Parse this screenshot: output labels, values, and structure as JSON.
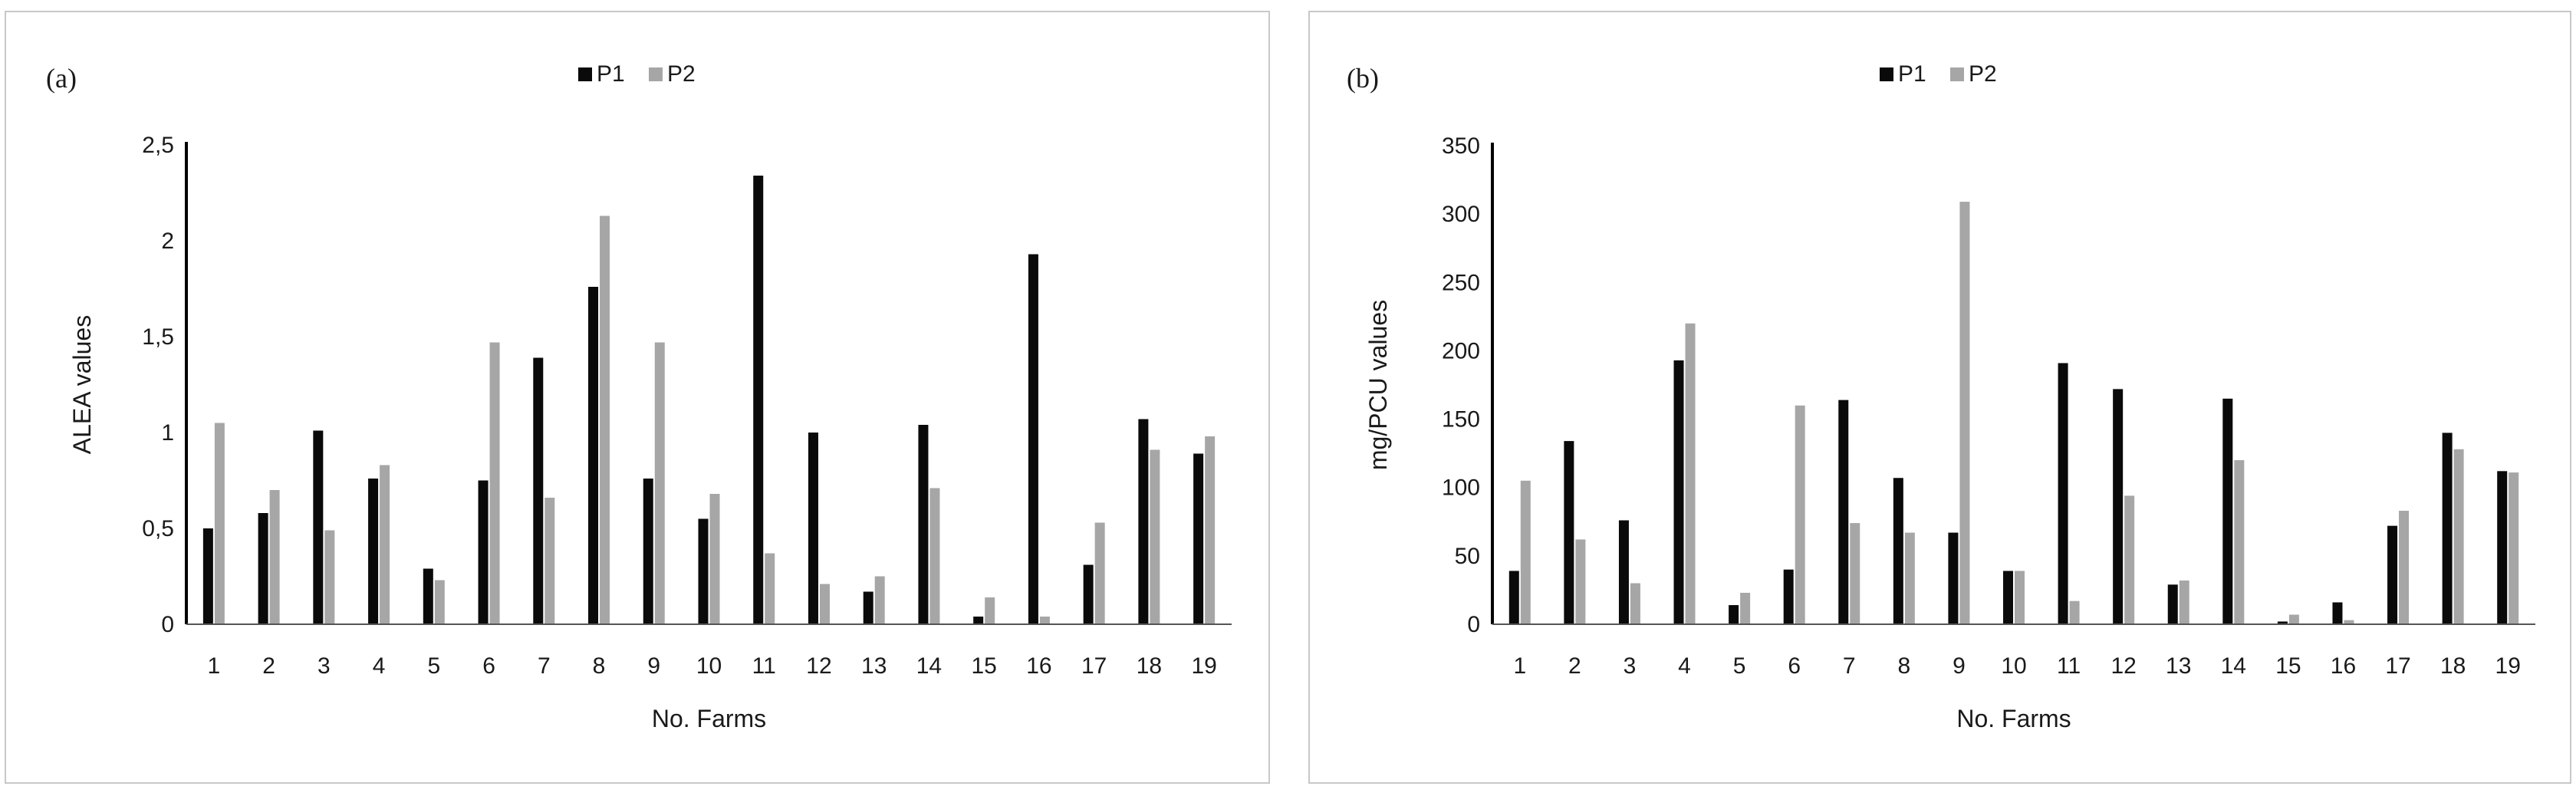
{
  "colors": {
    "P1": "#0a0a0a",
    "P2": "#a6a6a6",
    "axis": "#000000",
    "border": "#c8c8c8"
  },
  "chart_data": [
    {
      "type": "bar",
      "panel_label": "(a)",
      "xlabel": "No. Farms",
      "ylabel": "ALEA values",
      "ylim": [
        0,
        2.5
      ],
      "yticks": [
        "0",
        "0,5",
        "1",
        "1,5",
        "2",
        "2,5"
      ],
      "ytick_values": [
        0,
        0.5,
        1,
        1.5,
        2,
        2.5
      ],
      "legend_position": "top-center",
      "grid": false,
      "categories": [
        "1",
        "2",
        "3",
        "4",
        "5",
        "6",
        "7",
        "8",
        "9",
        "10",
        "11",
        "12",
        "13",
        "14",
        "15",
        "16",
        "17",
        "18",
        "19"
      ],
      "series": [
        {
          "name": "P1",
          "values": [
            0.5,
            0.58,
            1.01,
            0.76,
            0.29,
            0.75,
            1.39,
            1.76,
            0.76,
            0.55,
            2.34,
            1.0,
            0.17,
            1.04,
            0.04,
            1.93,
            0.31,
            1.07,
            0.89
          ]
        },
        {
          "name": "P2",
          "values": [
            1.05,
            0.7,
            0.49,
            0.83,
            0.23,
            1.47,
            0.66,
            2.13,
            1.47,
            0.68,
            0.37,
            0.21,
            0.25,
            0.71,
            0.14,
            0.04,
            0.53,
            0.91,
            0.98
          ]
        }
      ]
    },
    {
      "type": "bar",
      "panel_label": "(b)",
      "xlabel": "No. Farms",
      "ylabel": "mg/PCU values",
      "ylim": [
        0,
        350
      ],
      "yticks": [
        "0",
        "50",
        "100",
        "150",
        "200",
        "250",
        "300",
        "350"
      ],
      "ytick_values": [
        0,
        50,
        100,
        150,
        200,
        250,
        300,
        350
      ],
      "legend_position": "top-center",
      "grid": false,
      "categories": [
        "1",
        "2",
        "3",
        "4",
        "5",
        "6",
        "7",
        "8",
        "9",
        "10",
        "11",
        "12",
        "13",
        "14",
        "15",
        "16",
        "17",
        "18",
        "19"
      ],
      "series": [
        {
          "name": "P1",
          "values": [
            39,
            134,
            76,
            193,
            14,
            40,
            164,
            107,
            67,
            39,
            191,
            172,
            29,
            165,
            2,
            16,
            72,
            140,
            112
          ]
        },
        {
          "name": "P2",
          "values": [
            105,
            62,
            30,
            220,
            23,
            160,
            74,
            67,
            309,
            39,
            17,
            94,
            32,
            120,
            7,
            3,
            83,
            128,
            111
          ]
        }
      ]
    }
  ]
}
